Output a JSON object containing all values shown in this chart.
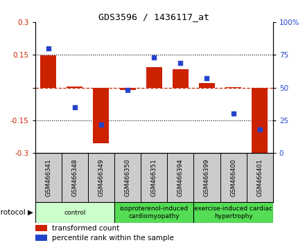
{
  "title": "GDS3596 / 1436117_at",
  "samples": [
    "GSM466341",
    "GSM466348",
    "GSM466349",
    "GSM466350",
    "GSM466351",
    "GSM466394",
    "GSM466399",
    "GSM466400",
    "GSM466401"
  ],
  "bar_values": [
    0.148,
    0.005,
    -0.255,
    -0.01,
    0.095,
    0.085,
    0.02,
    0.003,
    -0.3
  ],
  "dot_values": [
    80,
    35,
    22,
    48,
    73,
    69,
    57,
    30,
    18
  ],
  "ylim_left": [
    -0.3,
    0.3
  ],
  "ylim_right": [
    0,
    100
  ],
  "yticks_left": [
    -0.3,
    -0.15,
    0,
    0.15,
    0.3
  ],
  "yticks_right": [
    0,
    25,
    50,
    75,
    100
  ],
  "bar_color": "#cc2200",
  "dot_color": "#2244cc",
  "zero_line_color": "#cc2200",
  "bg_color": "#ffffff",
  "sample_box_color": "#cccccc",
  "protocol_groups": [
    {
      "label": "control",
      "start": 0,
      "end": 3,
      "color": "#ccffcc"
    },
    {
      "label": "isoproterenol-induced\ncardiomyopathy",
      "start": 3,
      "end": 6,
      "color": "#55dd55"
    },
    {
      "label": "exercise-induced cardiac\nhypertrophy",
      "start": 6,
      "end": 9,
      "color": "#55dd55"
    }
  ],
  "legend_bar_label": "transformed count",
  "legend_dot_label": "percentile rank within the sample",
  "protocol_label": "protocol"
}
